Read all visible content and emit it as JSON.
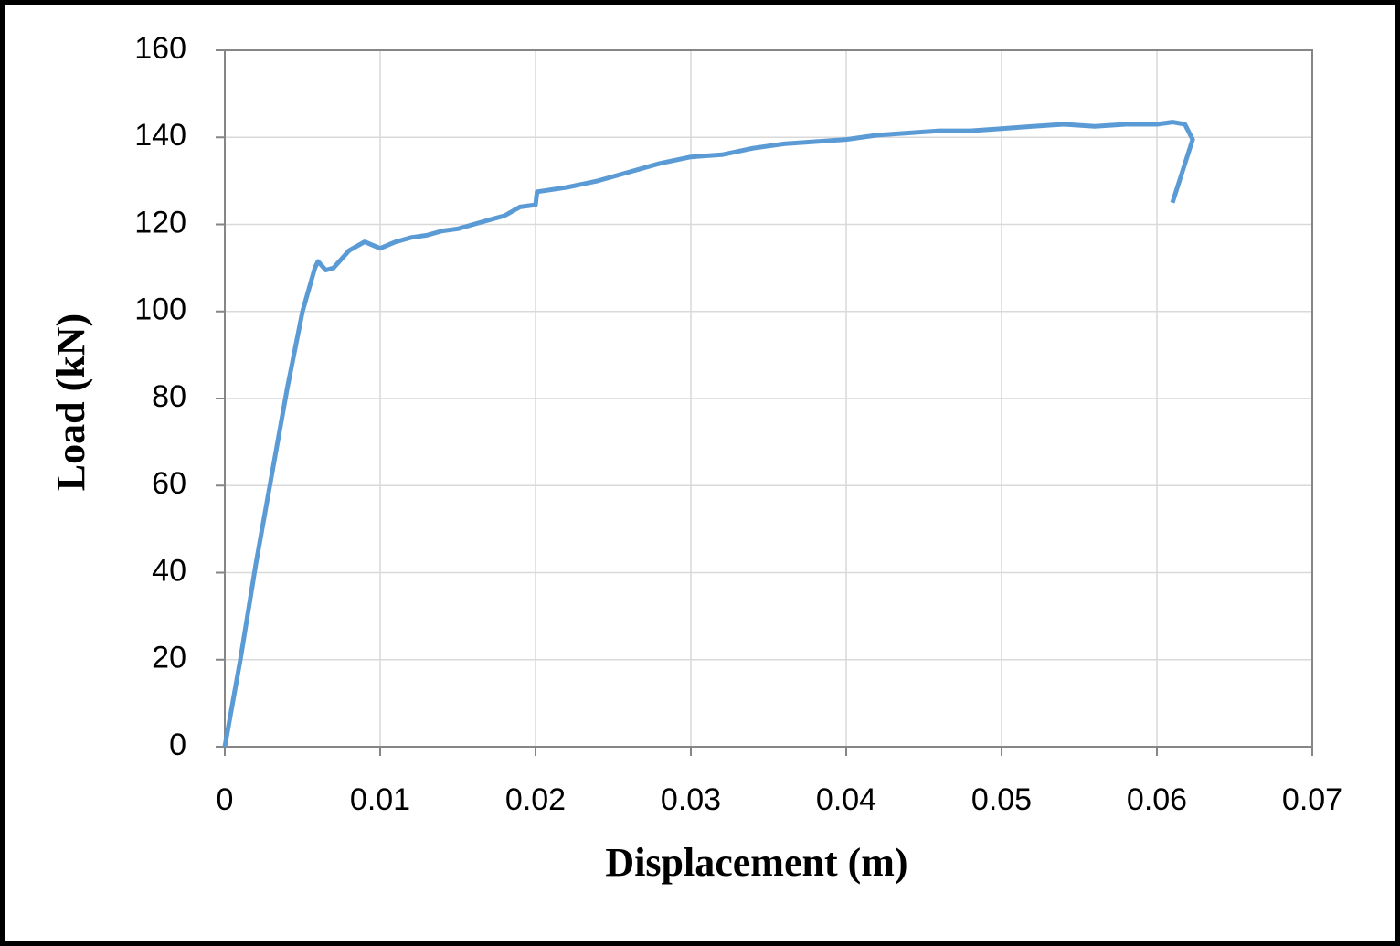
{
  "chart_data": {
    "type": "line",
    "x_label": "Displacement  (m)",
    "y_label": "Load (kN)",
    "x": [
      0,
      0.001,
      0.002,
      0.003,
      0.004,
      0.005,
      0.0058,
      0.006,
      0.0065,
      0.007,
      0.008,
      0.009,
      0.01,
      0.011,
      0.012,
      0.013,
      0.014,
      0.015,
      0.016,
      0.017,
      0.018,
      0.019,
      0.02,
      0.0201,
      0.022,
      0.024,
      0.026,
      0.028,
      0.03,
      0.032,
      0.034,
      0.036,
      0.038,
      0.04,
      0.042,
      0.044,
      0.046,
      0.048,
      0.05,
      0.052,
      0.054,
      0.056,
      0.058,
      0.06,
      0.061,
      0.0618,
      0.0623,
      0.061
    ],
    "values": [
      0,
      20,
      42,
      62,
      82,
      100,
      110,
      111.5,
      109.5,
      110,
      114,
      116,
      114.5,
      116,
      117,
      117.5,
      118.5,
      119,
      120,
      121,
      122,
      124,
      124.5,
      127.5,
      128.5,
      130,
      132,
      134,
      135.5,
      136,
      137.5,
      138.5,
      139,
      139.5,
      140.5,
      141,
      141.5,
      141.5,
      142,
      142.5,
      143,
      142.5,
      143,
      143,
      143.5,
      143,
      139.5,
      125
    ],
    "color": "#5b9bd5",
    "xlim": [
      0,
      0.07
    ],
    "xticks": [
      0,
      0.01,
      0.02,
      0.03,
      0.04,
      0.05,
      0.06,
      0.07
    ],
    "ylim": [
      0,
      160
    ],
    "yticks": [
      0,
      20,
      40,
      60,
      80,
      100,
      120,
      140,
      160
    ],
    "grid": true
  }
}
